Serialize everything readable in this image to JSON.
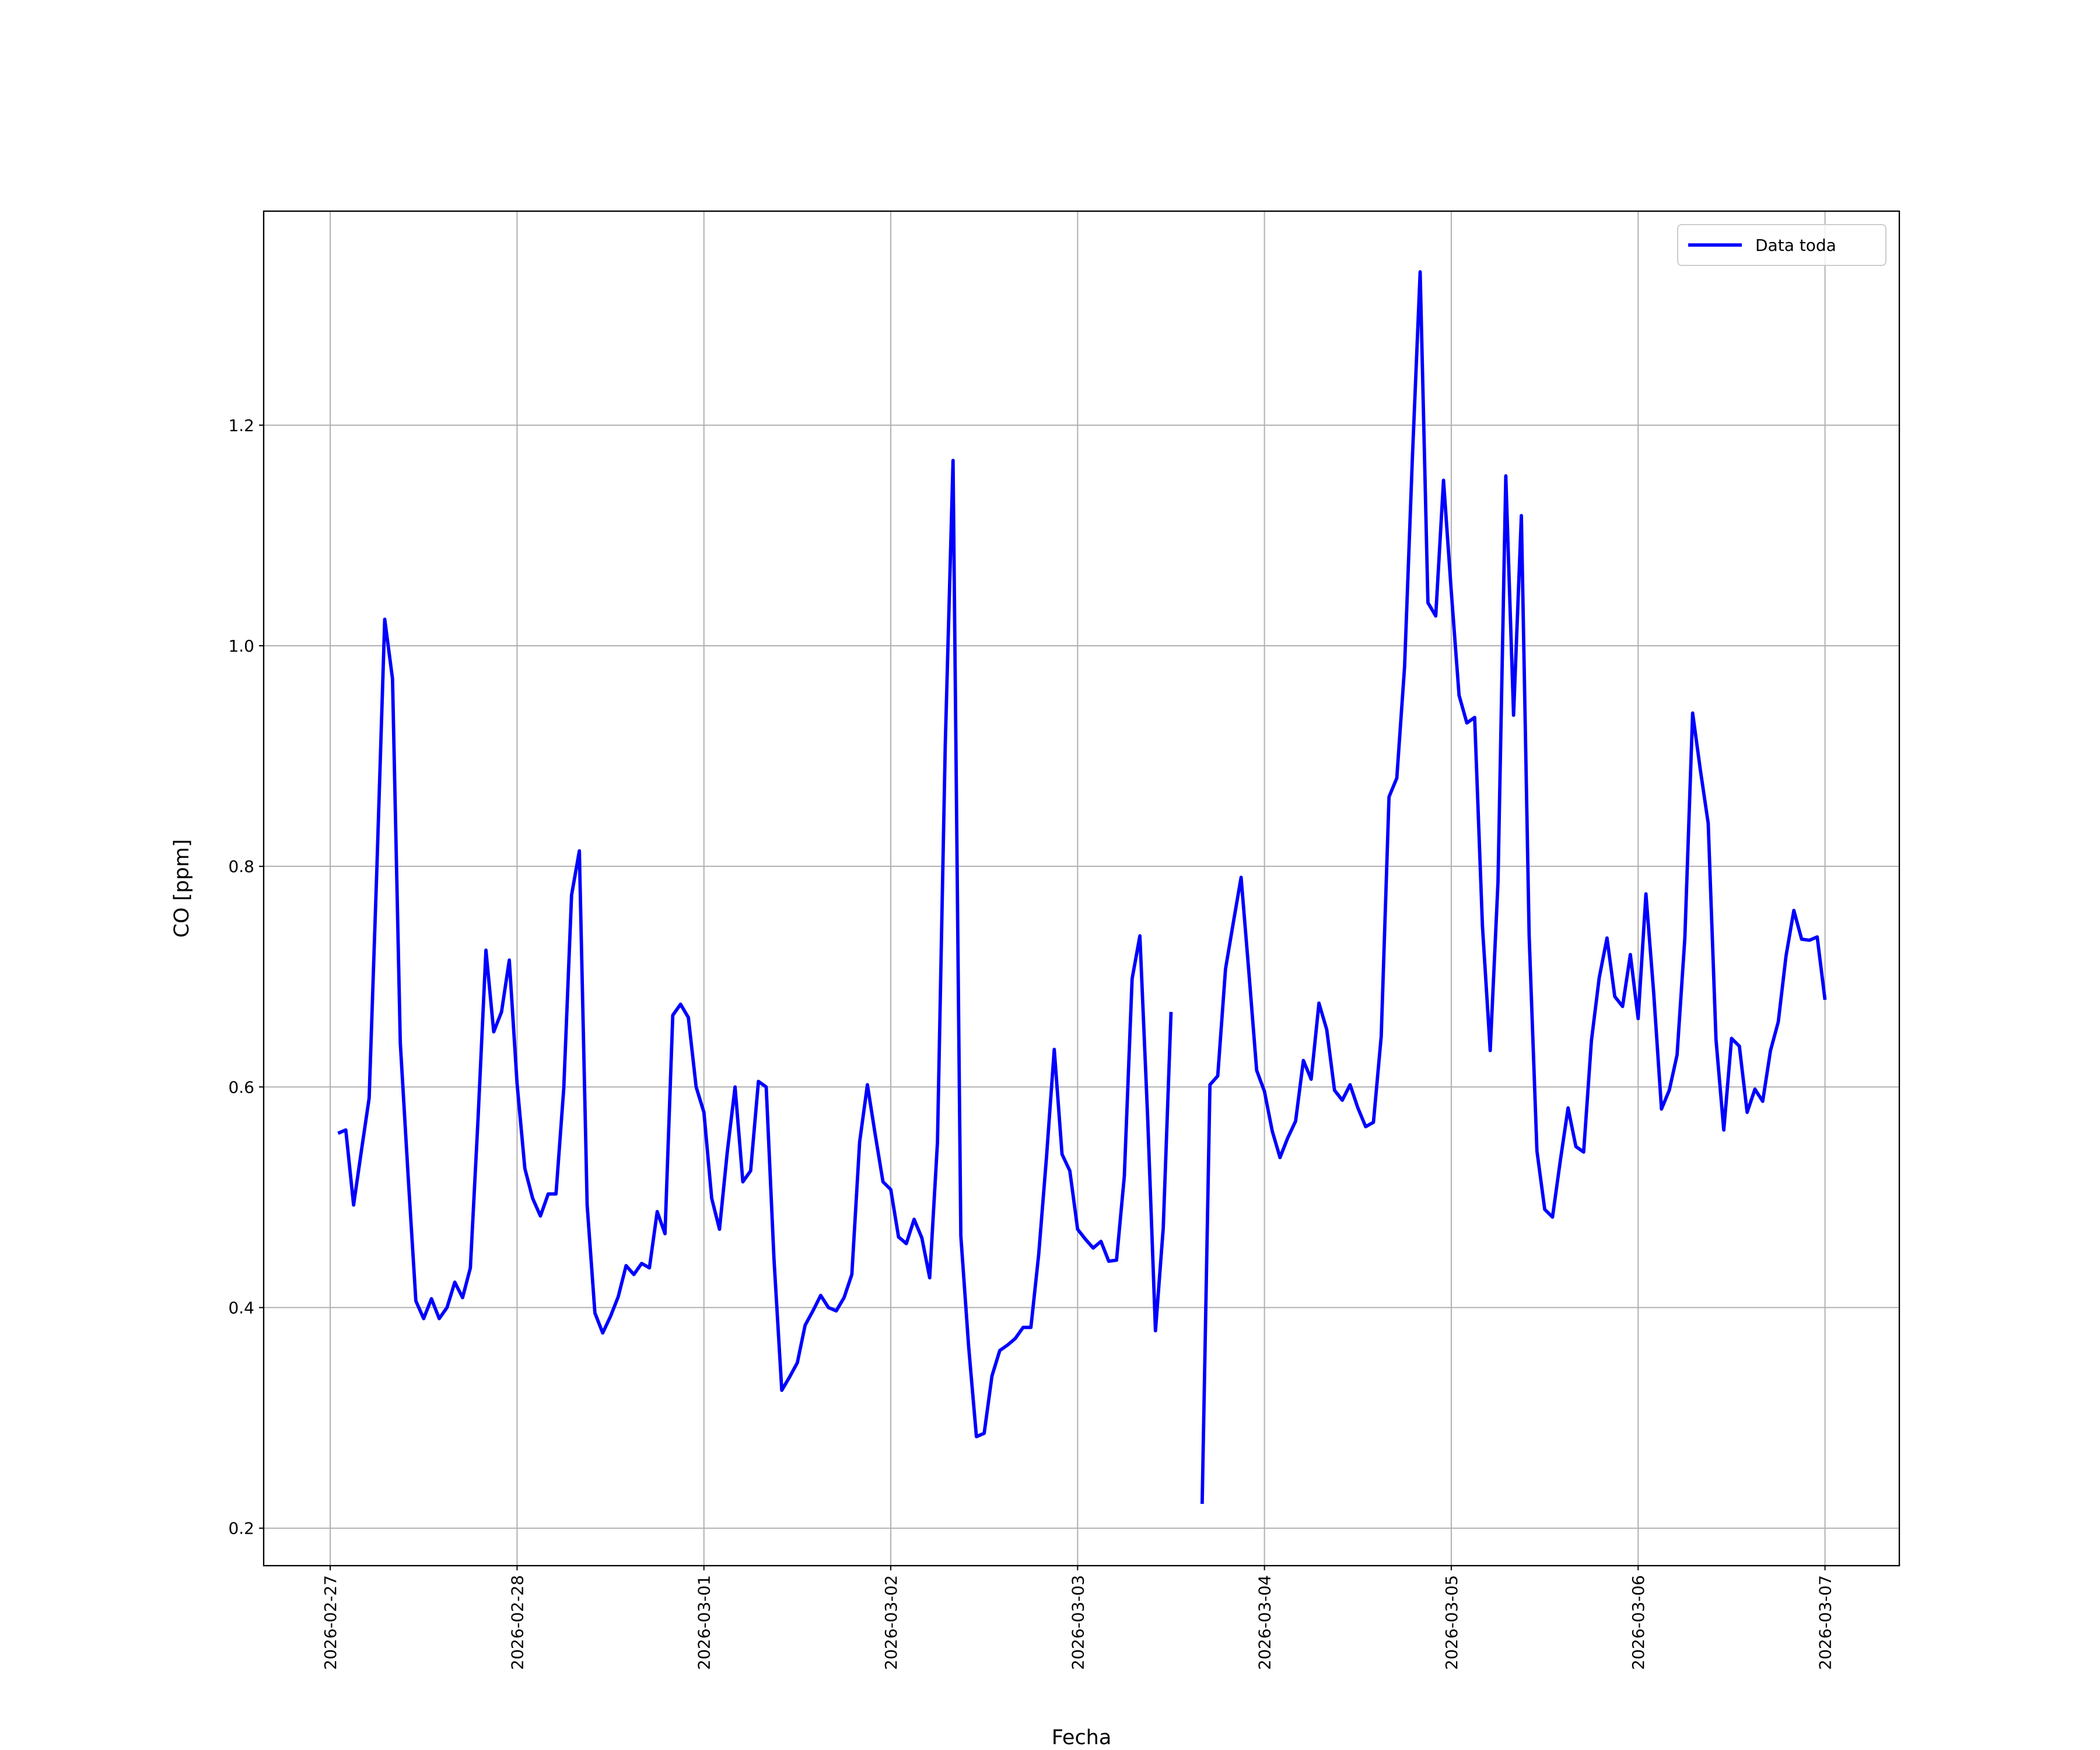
{
  "chart_data": {
    "type": "line",
    "xlabel": "Fecha",
    "ylabel": "CO [ppm]",
    "x": [
      "2026-02-27 01:00",
      "2026-02-27 02:00",
      "2026-02-27 03:00",
      "2026-02-27 04:00",
      "2026-02-27 05:00",
      "2026-02-27 06:00",
      "2026-02-27 07:00",
      "2026-02-27 08:00",
      "2026-02-27 09:00",
      "2026-02-27 10:00",
      "2026-02-27 11:00",
      "2026-02-27 12:00",
      "2026-02-27 13:00",
      "2026-02-27 14:00",
      "2026-02-27 15:00",
      "2026-02-27 16:00",
      "2026-02-27 17:00",
      "2026-02-27 18:00",
      "2026-02-27 19:00",
      "2026-02-27 20:00",
      "2026-02-27 21:00",
      "2026-02-27 22:00",
      "2026-02-27 23:00",
      "2026-02-28 00:00",
      "2026-02-28 01:00",
      "2026-02-28 02:00",
      "2026-02-28 03:00",
      "2026-02-28 04:00",
      "2026-02-28 05:00",
      "2026-02-28 06:00",
      "2026-02-28 07:00",
      "2026-02-28 08:00",
      "2026-02-28 09:00",
      "2026-02-28 10:00",
      "2026-02-28 11:00",
      "2026-02-28 12:00",
      "2026-02-28 13:00",
      "2026-02-28 14:00",
      "2026-02-28 15:00",
      "2026-02-28 16:00",
      "2026-02-28 17:00",
      "2026-02-28 18:00",
      "2026-02-28 19:00",
      "2026-02-28 20:00",
      "2026-02-28 21:00",
      "2026-02-28 22:00",
      "2026-02-28 23:00",
      "2026-03-01 00:00",
      "2026-03-01 01:00",
      "2026-03-01 02:00",
      "2026-03-01 03:00",
      "2026-03-01 04:00",
      "2026-03-01 05:00",
      "2026-03-01 06:00",
      "2026-03-01 07:00",
      "2026-03-01 08:00",
      "2026-03-01 09:00",
      "2026-03-01 10:00",
      "2026-03-01 11:00",
      "2026-03-01 12:00",
      "2026-03-01 13:00",
      "2026-03-01 14:00",
      "2026-03-01 15:00",
      "2026-03-01 16:00",
      "2026-03-01 17:00",
      "2026-03-01 18:00",
      "2026-03-01 19:00",
      "2026-03-01 20:00",
      "2026-03-01 21:00",
      "2026-03-01 22:00",
      "2026-03-01 23:00",
      "2026-03-02 00:00",
      "2026-03-02 01:00",
      "2026-03-02 02:00",
      "2026-03-02 03:00",
      "2026-03-02 04:00",
      "2026-03-02 05:00",
      "2026-03-02 06:00",
      "2026-03-02 07:00",
      "2026-03-02 08:00",
      "2026-03-02 09:00",
      "2026-03-02 10:00",
      "2026-03-02 11:00",
      "2026-03-02 12:00",
      "2026-03-02 13:00",
      "2026-03-02 14:00",
      "2026-03-02 15:00",
      "2026-03-02 16:00",
      "2026-03-02 17:00",
      "2026-03-02 18:00",
      "2026-03-02 19:00",
      "2026-03-02 20:00",
      "2026-03-02 21:00",
      "2026-03-02 22:00",
      "2026-03-02 23:00",
      "2026-03-03 00:00",
      "2026-03-03 01:00",
      "2026-03-03 02:00",
      "2026-03-03 03:00",
      "2026-03-03 04:00",
      "2026-03-03 05:00",
      "2026-03-03 06:00",
      "2026-03-03 07:00",
      "2026-03-03 08:00",
      "2026-03-03 09:00",
      "2026-03-03 10:00",
      "2026-03-03 11:00",
      "2026-03-03 12:00",
      "2026-03-03 13:00",
      "2026-03-03 14:00",
      "2026-03-03 15:00",
      "2026-03-03 16:00",
      "2026-03-03 17:00",
      "2026-03-03 18:00",
      "2026-03-03 19:00",
      "2026-03-03 20:00",
      "2026-03-03 21:00",
      "2026-03-03 22:00",
      "2026-03-03 23:00",
      "2026-03-04 00:00",
      "2026-03-04 01:00",
      "2026-03-04 02:00",
      "2026-03-04 03:00",
      "2026-03-04 04:00",
      "2026-03-04 05:00",
      "2026-03-04 06:00",
      "2026-03-04 07:00",
      "2026-03-04 08:00",
      "2026-03-04 09:00",
      "2026-03-04 10:00",
      "2026-03-04 11:00",
      "2026-03-04 12:00",
      "2026-03-04 13:00",
      "2026-03-04 14:00",
      "2026-03-04 15:00",
      "2026-03-04 16:00",
      "2026-03-04 17:00",
      "2026-03-04 18:00",
      "2026-03-04 19:00",
      "2026-03-04 20:00",
      "2026-03-04 21:00",
      "2026-03-04 22:00",
      "2026-03-04 23:00",
      "2026-03-05 00:00",
      "2026-03-05 01:00",
      "2026-03-05 02:00",
      "2026-03-05 03:00",
      "2026-03-05 04:00",
      "2026-03-05 05:00",
      "2026-03-05 06:00",
      "2026-03-05 07:00",
      "2026-03-05 08:00",
      "2026-03-05 09:00",
      "2026-03-05 10:00",
      "2026-03-05 11:00",
      "2026-03-05 12:00",
      "2026-03-05 13:00",
      "2026-03-05 14:00",
      "2026-03-05 15:00",
      "2026-03-05 16:00",
      "2026-03-05 17:00",
      "2026-03-05 18:00",
      "2026-03-05 19:00",
      "2026-03-05 20:00",
      "2026-03-05 21:00",
      "2026-03-05 22:00",
      "2026-03-05 23:00",
      "2026-03-06 00:00",
      "2026-03-06 01:00",
      "2026-03-06 02:00",
      "2026-03-06 03:00",
      "2026-03-06 04:00",
      "2026-03-06 05:00",
      "2026-03-06 06:00",
      "2026-03-06 07:00",
      "2026-03-06 08:00",
      "2026-03-06 09:00",
      "2026-03-06 10:00",
      "2026-03-06 11:00",
      "2026-03-06 12:00",
      "2026-03-06 13:00",
      "2026-03-06 14:00",
      "2026-03-06 15:00",
      "2026-03-06 16:00",
      "2026-03-06 17:00",
      "2026-03-06 18:00",
      "2026-03-06 19:00",
      "2026-03-06 20:00",
      "2026-03-06 21:00",
      "2026-03-06 22:00",
      "2026-03-06 23:00",
      "2026-03-07 00:00"
    ],
    "series": [
      {
        "name": "Data toda",
        "color": "#0000ff",
        "values": [
          0.558,
          0.561,
          0.493,
          0.542,
          0.59,
          0.8,
          1.024,
          0.97,
          0.64,
          0.52,
          0.406,
          0.39,
          0.408,
          0.39,
          0.4,
          0.423,
          0.409,
          0.436,
          0.573,
          0.724,
          0.65,
          0.668,
          0.715,
          0.603,
          0.526,
          0.499,
          0.483,
          0.503,
          0.503,
          0.599,
          0.774,
          0.814,
          0.493,
          0.395,
          0.377,
          0.392,
          0.41,
          0.438,
          0.43,
          0.44,
          0.436,
          0.487,
          0.467,
          0.665,
          0.675,
          0.663,
          0.6,
          0.577,
          0.499,
          0.471,
          0.541,
          0.6,
          0.514,
          0.524,
          0.605,
          0.6,
          0.444,
          0.325,
          0.337,
          0.35,
          0.384,
          0.397,
          0.411,
          0.4,
          0.397,
          0.409,
          0.43,
          0.55,
          0.602,
          0.557,
          0.514,
          0.507,
          0.464,
          0.458,
          0.48,
          0.463,
          0.427,
          0.55,
          0.91,
          1.168,
          0.465,
          0.365,
          0.283,
          0.286,
          0.338,
          0.361,
          0.366,
          0.372,
          0.382,
          0.382,
          0.448,
          0.536,
          0.634,
          0.539,
          0.524,
          0.471,
          0.462,
          0.454,
          0.46,
          0.442,
          0.443,
          0.519,
          0.698,
          0.737,
          0.572,
          0.379,
          0.472,
          0.668,
          null,
          null,
          null,
          0.222,
          0.602,
          0.61,
          0.707,
          0.749,
          0.79,
          0.704,
          0.615,
          0.596,
          0.56,
          0.536,
          0.554,
          0.569,
          0.624,
          0.607,
          0.676,
          0.652,
          0.597,
          0.588,
          0.602,
          0.581,
          0.564,
          0.568,
          0.646,
          0.863,
          0.88,
          0.981,
          1.17,
          1.339,
          1.039,
          1.027,
          1.15,
          1.049,
          0.955,
          0.93,
          0.935,
          0.746,
          0.633,
          0.786,
          1.154,
          0.937,
          1.118,
          0.737,
          0.542,
          0.489,
          0.482,
          0.533,
          0.581,
          0.546,
          0.541,
          0.642,
          0.699,
          0.735,
          0.682,
          0.673,
          0.72,
          0.662,
          0.775,
          0.685,
          0.58,
          0.597,
          0.629,
          0.735,
          0.939,
          0.887,
          0.839,
          0.643,
          0.561,
          0.644,
          0.637,
          0.577,
          0.598,
          0.587,
          0.633,
          0.659,
          0.719,
          0.76,
          0.734,
          0.733,
          0.736,
          0.679
        ]
      }
    ],
    "xlim": [
      "2026-02-26 15:27",
      "2026-03-07 09:33"
    ],
    "xticks": [
      "2026-02-27",
      "2026-02-28",
      "2026-03-01",
      "2026-03-02",
      "2026-03-03",
      "2026-03-04",
      "2026-03-05",
      "2026-03-06",
      "2026-03-07"
    ],
    "ylim": [
      0.166,
      1.394
    ],
    "yticks": [
      0.2,
      0.4,
      0.6,
      0.8,
      {
        "value": 1,
        "label": "1.0"
      },
      1.2
    ],
    "grid": true,
    "legend": "upper right"
  }
}
